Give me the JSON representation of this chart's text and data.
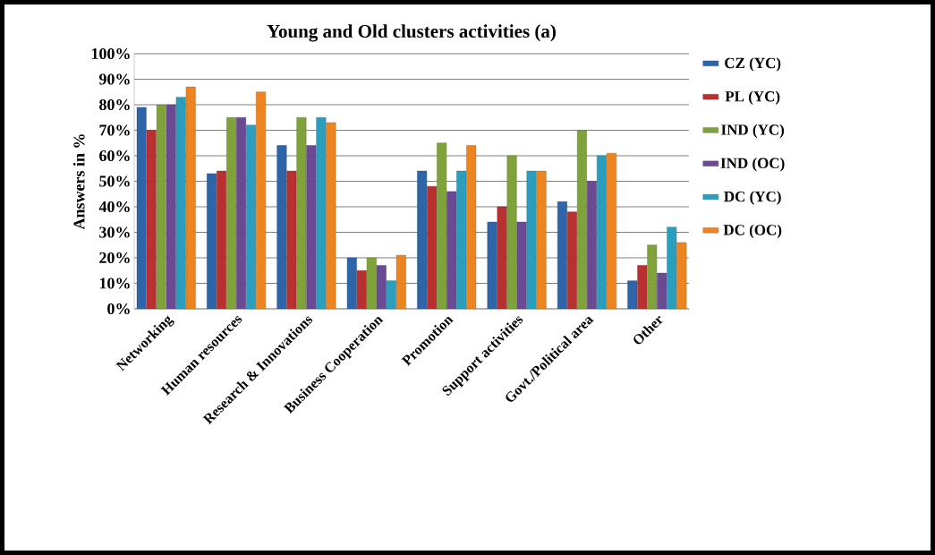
{
  "chart_data": {
    "type": "bar",
    "title": "Young and Old clusters activities (a)",
    "ylabel": "Answers in %",
    "categories": [
      "Networking",
      "Human resources",
      "Research & Innovations",
      "Business Cooperation",
      "Promotion",
      "Support activities",
      "Govt./Political area",
      "Other"
    ],
    "series": [
      {
        "name": "CZ (YC)",
        "color": "#2e64a8",
        "values": [
          79,
          53,
          64,
          20,
          54,
          34,
          42,
          11
        ]
      },
      {
        "name": "PL (YC)",
        "color": "#b83030",
        "values": [
          70,
          54,
          54,
          15,
          48,
          40,
          38,
          17
        ]
      },
      {
        "name": "IND (YC)",
        "color": "#7fa23a",
        "values": [
          80,
          75,
          75,
          20,
          65,
          60,
          70,
          25
        ]
      },
      {
        "name": "IND (OC)",
        "color": "#6b4a94",
        "values": [
          80,
          75,
          64,
          17,
          46,
          34,
          50,
          14
        ]
      },
      {
        "name": "DC (YC)",
        "color": "#2a9ebc",
        "values": [
          83,
          72,
          75,
          11,
          54,
          54,
          60,
          32
        ]
      },
      {
        "name": "DC (OC)",
        "color": "#ec8420",
        "values": [
          87,
          85,
          73,
          21,
          64,
          54,
          61,
          26
        ]
      }
    ],
    "ylim": [
      0,
      100
    ],
    "yticks": [
      {
        "value": 0,
        "label": "0%"
      },
      {
        "value": 10,
        "label": "10%"
      },
      {
        "value": 20,
        "label": "20%"
      },
      {
        "value": 30,
        "label": "30%"
      },
      {
        "value": 40,
        "label": "40%"
      },
      {
        "value": 50,
        "label": "50%"
      },
      {
        "value": 60,
        "label": "60%"
      },
      {
        "value": 70,
        "label": "70%"
      },
      {
        "value": 80,
        "label": "80%"
      },
      {
        "value": 90,
        "label": "90%"
      },
      {
        "value": 100,
        "label": "100%"
      }
    ],
    "grid": "y",
    "legend": "right"
  }
}
